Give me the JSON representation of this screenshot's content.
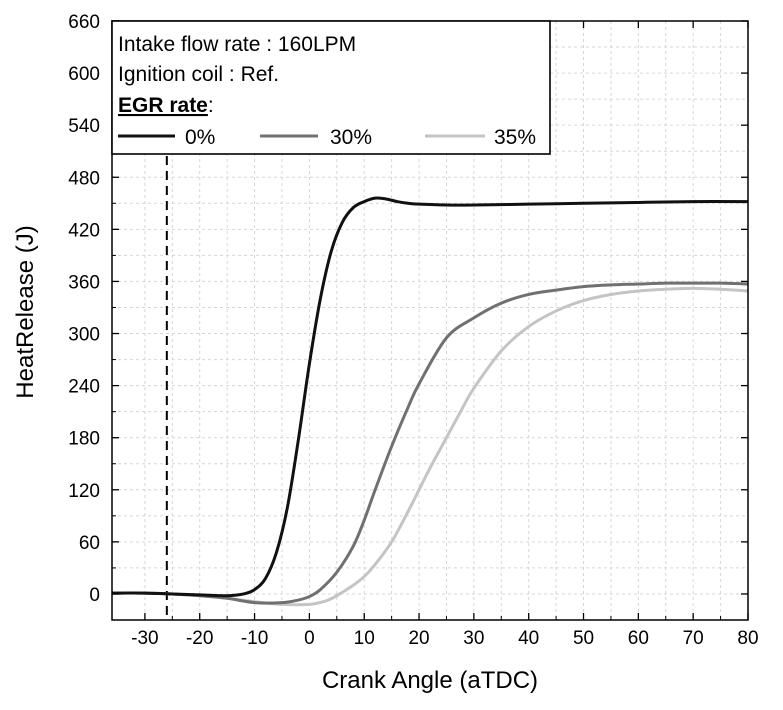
{
  "chart_data": {
    "type": "line",
    "title": "",
    "xlabel": "Crank Angle (aTDC)",
    "ylabel": "HeatRelease (J)",
    "xlim": [
      -36,
      80
    ],
    "ylim": [
      -30,
      660
    ],
    "xticks": [
      -30,
      -20,
      -10,
      0,
      10,
      20,
      30,
      40,
      50,
      60,
      70,
      80
    ],
    "yticks": [
      0,
      60,
      120,
      180,
      240,
      300,
      360,
      420,
      480,
      540,
      600,
      660
    ],
    "grid": true,
    "reference_line": {
      "x": -26,
      "style": "dashed"
    },
    "legend": {
      "position": "top-left",
      "notes": [
        "Intake flow rate : 160LPM",
        "Ignition coil : Ref."
      ],
      "heading": "EGR rate",
      "heading_suffix": ":"
    },
    "series": [
      {
        "name": "0%",
        "color": "#111111",
        "x": [
          -36,
          -30,
          -25,
          -20,
          -15,
          -12,
          -10,
          -8,
          -6,
          -4,
          -2,
          0,
          2,
          4,
          6,
          8,
          10,
          12,
          14,
          16,
          18,
          20,
          25,
          30,
          40,
          50,
          60,
          70,
          80
        ],
        "y": [
          1,
          1,
          0,
          -1,
          -2,
          0,
          5,
          18,
          48,
          100,
          178,
          265,
          340,
          395,
          428,
          445,
          452,
          456,
          455,
          452,
          450,
          449,
          448,
          448,
          449,
          450,
          451,
          452,
          452
        ]
      },
      {
        "name": "30%",
        "color": "#707070",
        "x": [
          -36,
          -30,
          -25,
          -20,
          -15,
          -10,
          -5,
          -2,
          0,
          2,
          5,
          8,
          10,
          12,
          15,
          18,
          20,
          25,
          30,
          35,
          40,
          45,
          50,
          55,
          60,
          65,
          70,
          75,
          80
        ],
        "y": [
          1,
          1,
          0,
          -2,
          -5,
          -10,
          -10,
          -7,
          -3,
          5,
          25,
          55,
          85,
          120,
          170,
          215,
          242,
          295,
          318,
          335,
          345,
          350,
          354,
          356,
          357,
          358,
          358,
          358,
          357
        ]
      },
      {
        "name": "35%",
        "color": "#c4c4c4",
        "x": [
          -36,
          -30,
          -25,
          -20,
          -15,
          -10,
          -5,
          0,
          3,
          5,
          8,
          10,
          12,
          15,
          18,
          20,
          22,
          25,
          28,
          30,
          35,
          40,
          45,
          50,
          55,
          60,
          65,
          70,
          75,
          80
        ],
        "y": [
          1,
          1,
          0,
          -2,
          -5,
          -9,
          -12,
          -12,
          -8,
          -2,
          10,
          20,
          34,
          60,
          95,
          120,
          145,
          180,
          215,
          237,
          280,
          308,
          326,
          338,
          345,
          349,
          351,
          352,
          351,
          349
        ]
      }
    ]
  }
}
